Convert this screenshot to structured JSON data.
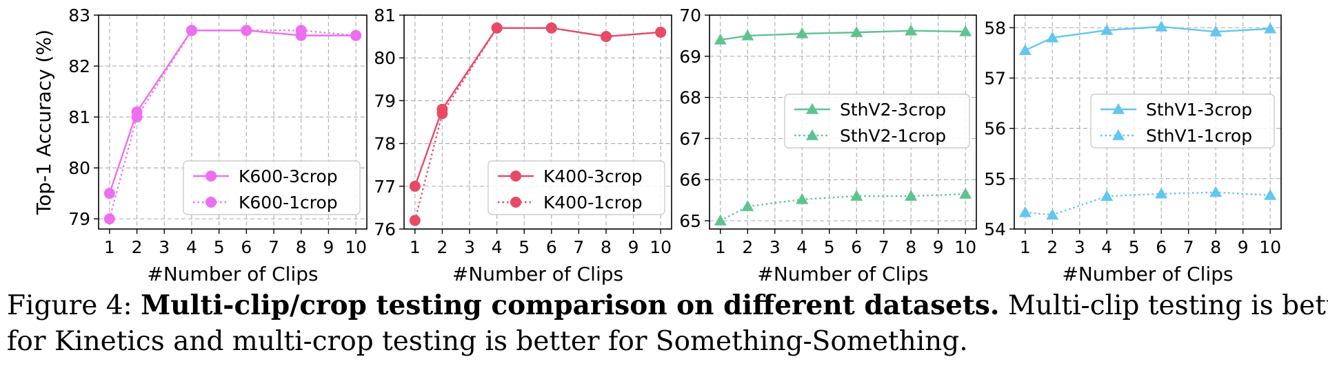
{
  "chart_data": [
    {
      "type": "line",
      "ylabel": "Top-1 Accuracy (%)",
      "xlabel": "#Number of Clips",
      "x_ticks": [
        1,
        2,
        3,
        4,
        5,
        6,
        7,
        8,
        9,
        10
      ],
      "ylim": [
        78.8,
        83
      ],
      "y_ticks": [
        79,
        80,
        81,
        82,
        83
      ],
      "grid": true,
      "legend_position": "lower-right",
      "color": "#ee6ef0",
      "marker": "circle",
      "series": [
        {
          "name": "K600-3crop",
          "style": "solid",
          "x": [
            1,
            2,
            4,
            6,
            8,
            10
          ],
          "values": [
            79.5,
            81.1,
            82.7,
            82.7,
            82.6,
            82.6
          ]
        },
        {
          "name": "K600-1crop",
          "style": "dotted",
          "x": [
            1,
            2,
            4,
            6,
            8,
            10
          ],
          "values": [
            79.0,
            81.0,
            82.7,
            82.7,
            82.7,
            82.6
          ]
        }
      ]
    },
    {
      "type": "line",
      "ylabel": "",
      "xlabel": "#Number of Clips",
      "x_ticks": [
        1,
        2,
        3,
        4,
        5,
        6,
        7,
        8,
        9,
        10
      ],
      "ylim": [
        76,
        81
      ],
      "y_ticks": [
        76,
        77,
        78,
        79,
        80,
        81
      ],
      "grid": true,
      "legend_position": "lower-right",
      "color": "#e84a66",
      "marker": "circle",
      "series": [
        {
          "name": "K400-3crop",
          "style": "solid",
          "x": [
            1,
            2,
            4,
            6,
            8,
            10
          ],
          "values": [
            77.0,
            78.8,
            80.7,
            80.7,
            80.5,
            80.6
          ]
        },
        {
          "name": "K400-1crop",
          "style": "dotted",
          "x": [
            1,
            2,
            4,
            6,
            8,
            10
          ],
          "values": [
            76.2,
            78.7,
            80.7,
            80.7,
            80.5,
            80.6
          ]
        }
      ]
    },
    {
      "type": "line",
      "ylabel": "",
      "xlabel": "#Number of Clips",
      "x_ticks": [
        1,
        2,
        3,
        4,
        5,
        6,
        7,
        8,
        9,
        10
      ],
      "ylim": [
        64.8,
        70
      ],
      "y_ticks": [
        65,
        66,
        67,
        68,
        69,
        70
      ],
      "grid": true,
      "legend_position": "center-right",
      "color": "#5dc48f",
      "marker": "triangle",
      "series": [
        {
          "name": "SthV2-3crop",
          "style": "solid",
          "x": [
            1,
            2,
            4,
            6,
            8,
            10
          ],
          "values": [
            69.4,
            69.5,
            69.55,
            69.58,
            69.62,
            69.6
          ]
        },
        {
          "name": "SthV2-1crop",
          "style": "dotted",
          "x": [
            1,
            2,
            4,
            6,
            8,
            10
          ],
          "values": [
            65.0,
            65.35,
            65.52,
            65.6,
            65.6,
            65.65
          ]
        }
      ]
    },
    {
      "type": "line",
      "ylabel": "",
      "xlabel": "#Number of Clips",
      "x_ticks": [
        1,
        2,
        3,
        4,
        5,
        6,
        7,
        8,
        9,
        10
      ],
      "ylim": [
        54,
        58.25
      ],
      "y_ticks": [
        54,
        55,
        56,
        57,
        58
      ],
      "grid": true,
      "legend_position": "center-right",
      "color": "#62c6f0",
      "marker": "triangle",
      "series": [
        {
          "name": "SthV1-3crop",
          "style": "solid",
          "x": [
            1,
            2,
            4,
            6,
            8,
            10
          ],
          "values": [
            57.55,
            57.8,
            57.95,
            58.02,
            57.92,
            57.98
          ]
        },
        {
          "name": "SthV1-1crop",
          "style": "dotted",
          "x": [
            1,
            2,
            4,
            6,
            8,
            10
          ],
          "values": [
            54.33,
            54.28,
            54.65,
            54.7,
            54.73,
            54.67
          ]
        }
      ]
    }
  ],
  "caption": {
    "label": "Figure 4:",
    "bold": "Multi-clip/crop testing comparison on different datasets.",
    "line1_rest": "Multi-clip testing is better",
    "line2": "for Kinetics and multi-crop testing is better for Something-Something."
  }
}
